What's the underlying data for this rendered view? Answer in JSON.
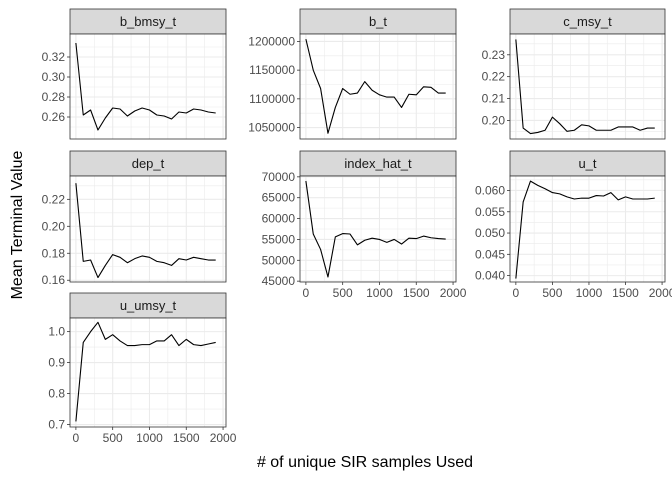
{
  "chart_data": {
    "type": "line",
    "xlabel": "# of unique SIR samples Used",
    "ylabel": "Mean Terminal Value",
    "xlim": [
      -80,
      2040
    ],
    "x_ticks": [
      0,
      500,
      1000,
      1500,
      2000
    ],
    "x": [
      0,
      100,
      200,
      300,
      400,
      500,
      600,
      700,
      800,
      900,
      1000,
      1100,
      1200,
      1300,
      1400,
      1500,
      1600,
      1700,
      1800,
      1900
    ],
    "grid": true,
    "line_color": "#000000",
    "panel_background": "#ffffff",
    "grid_color": "#ebebeb",
    "strip_fill": "#d9d9d9",
    "panels": [
      {
        "name": "b_bmsy_t",
        "ylim": [
          0.238,
          0.343
        ],
        "y_ticks": [
          0.26,
          0.28,
          0.3,
          0.32
        ],
        "y_tick_labels": [
          "0.26",
          "0.28",
          "0.30",
          "0.32"
        ],
        "values": [
          0.334,
          0.262,
          0.267,
          0.247,
          0.259,
          0.269,
          0.268,
          0.261,
          0.266,
          0.269,
          0.267,
          0.262,
          0.261,
          0.258,
          0.265,
          0.264,
          0.268,
          0.267,
          0.265,
          0.264
        ]
      },
      {
        "name": "b_t",
        "ylim": [
          1030000,
          1213000
        ],
        "y_ticks": [
          1050000,
          1100000,
          1150000,
          1200000
        ],
        "y_tick_labels": [
          "1050000",
          "1100000",
          "1150000",
          "1200000"
        ],
        "values": [
          1204000,
          1150000,
          1118000,
          1040000,
          1085000,
          1118000,
          1108000,
          1110000,
          1130000,
          1115000,
          1107000,
          1103000,
          1103000,
          1085000,
          1108000,
          1107000,
          1121000,
          1120000,
          1110000,
          1110000
        ]
      },
      {
        "name": "c_msy_t",
        "ylim": [
          0.1915,
          0.2395
        ],
        "y_ticks": [
          0.2,
          0.21,
          0.22,
          0.23
        ],
        "y_tick_labels": [
          "0.20",
          "0.21",
          "0.22",
          "0.23"
        ],
        "values": [
          0.237,
          0.1965,
          0.194,
          0.1945,
          0.1955,
          0.2015,
          0.1985,
          0.195,
          0.1955,
          0.198,
          0.1975,
          0.1955,
          0.1955,
          0.1955,
          0.197,
          0.197,
          0.197,
          0.1955,
          0.1965,
          0.1965
        ]
      },
      {
        "name": "dep_t",
        "ylim": [
          0.1587,
          0.2373
        ],
        "y_ticks": [
          0.16,
          0.18,
          0.2,
          0.22
        ],
        "y_tick_labels": [
          "0.16",
          "0.18",
          "0.20",
          "0.22"
        ],
        "values": [
          0.232,
          0.174,
          0.175,
          0.162,
          0.171,
          0.179,
          0.177,
          0.173,
          0.176,
          0.178,
          0.177,
          0.174,
          0.173,
          0.171,
          0.176,
          0.175,
          0.177,
          0.176,
          0.175,
          0.175
        ]
      },
      {
        "name": "index_hat_t",
        "ylim": [
          44800,
          70200
        ],
        "y_ticks": [
          45000,
          50000,
          55000,
          60000,
          65000,
          70000
        ],
        "y_tick_labels": [
          "45000",
          "50000",
          "55000",
          "60000",
          "65000",
          "70000"
        ],
        "values": [
          69000,
          56300,
          52600,
          46000,
          55600,
          56400,
          56300,
          53700,
          54800,
          55300,
          55000,
          54300,
          55000,
          53900,
          55300,
          55200,
          55800,
          55400,
          55200,
          55100
        ]
      },
      {
        "name": "u_t",
        "ylim": [
          0.0385,
          0.0634
        ],
        "y_ticks": [
          0.04,
          0.045,
          0.05,
          0.055,
          0.06
        ],
        "y_tick_labels": [
          "0.040",
          "0.045",
          "0.050",
          "0.055",
          "0.060"
        ],
        "values": [
          0.0393,
          0.0573,
          0.0622,
          0.0612,
          0.0604,
          0.0595,
          0.0592,
          0.0585,
          0.058,
          0.0582,
          0.0582,
          0.0588,
          0.0587,
          0.0595,
          0.0578,
          0.0585,
          0.058,
          0.058,
          0.058,
          0.0582
        ]
      },
      {
        "name": "u_umsy_t",
        "ylim": [
          0.692,
          1.044
        ],
        "y_ticks": [
          0.7,
          0.8,
          0.9,
          1.0
        ],
        "y_tick_labels": [
          "0.7",
          "0.8",
          "0.9",
          "1.0"
        ],
        "values": [
          0.71,
          0.965,
          1.0,
          1.03,
          0.975,
          0.99,
          0.97,
          0.955,
          0.955,
          0.958,
          0.958,
          0.97,
          0.97,
          0.99,
          0.955,
          0.975,
          0.958,
          0.955,
          0.96,
          0.965
        ]
      }
    ]
  }
}
